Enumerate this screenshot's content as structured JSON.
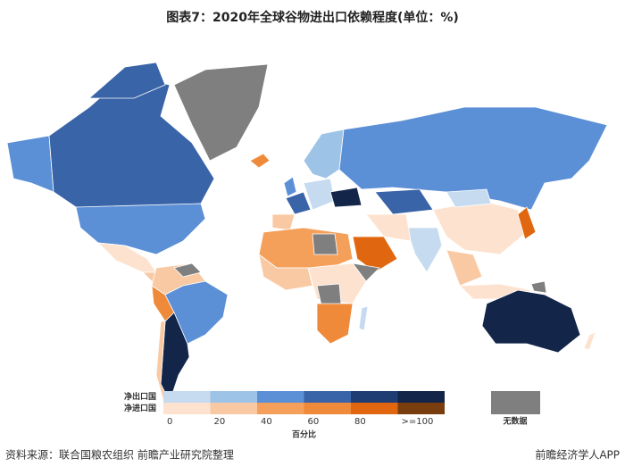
{
  "title": "图表7：2020年全球谷物进出口依赖程度(单位：%)",
  "legend": {
    "rows": [
      {
        "label": "净出口国",
        "colors": [
          "#c6dbf0",
          "#9dc3e6",
          "#5b8fd6",
          "#3a64a8",
          "#1f3d73",
          "#13264a"
        ]
      },
      {
        "label": "净进口国",
        "colors": [
          "#fde3cf",
          "#f9c9a3",
          "#f5a05a",
          "#ef8a3a",
          "#e0670f",
          "#7a3d0e"
        ]
      }
    ],
    "ticks": [
      0,
      20,
      40,
      60,
      80,
      {
        "value": 100,
        "label": ">=100"
      }
    ],
    "unit_label": "百分比",
    "no_data": {
      "label": "无数据",
      "color": "#7f7f7f"
    }
  },
  "source": "资料来源：联合国粮农组织 前瞻产业研究院整理",
  "brand": "前瞻经济学人APP"
}
